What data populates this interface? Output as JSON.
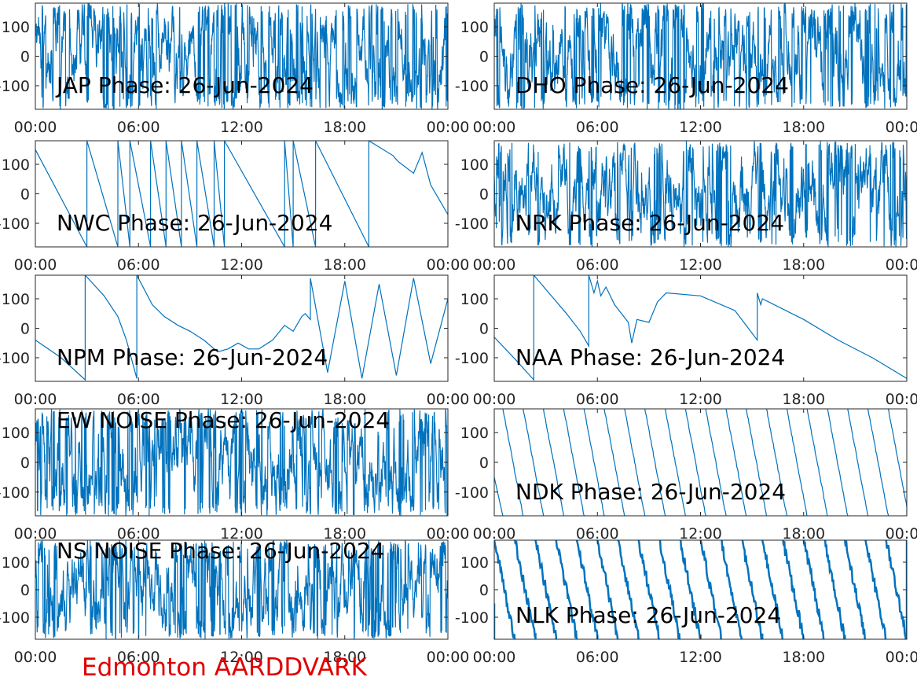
{
  "station_label": "Edmonton AARDDVARK",
  "station_color": "#e00000",
  "series_color": "#0072bd",
  "chart_data": [
    {
      "type": "line",
      "title": "JAP Phase: 26-Jun-2024",
      "x_ticks": [
        "00:00",
        "06:00",
        "12:00",
        "18:00",
        "00:00"
      ],
      "y_ticks": [
        "100",
        "0",
        "-100"
      ],
      "ylim": [
        -180,
        180
      ],
      "xlim": [
        "00:00",
        "24:00"
      ],
      "style": "noise",
      "x": [
        0,
        24
      ],
      "y": [
        0,
        0
      ]
    },
    {
      "type": "line",
      "title": "DHO Phase: 26-Jun-2024",
      "x_ticks": [
        "00:00",
        "06:00",
        "12:00",
        "18:00",
        "00:00"
      ],
      "y_ticks": [
        "100",
        "0",
        "-100"
      ],
      "ylim": [
        -180,
        180
      ],
      "xlim": [
        "00:00",
        "24:00"
      ],
      "style": "noise",
      "x": [
        0,
        24
      ],
      "y": [
        0,
        0
      ]
    },
    {
      "type": "line",
      "title": "NWC Phase: 26-Jun-2024",
      "x_ticks": [
        "00:00",
        "06:00",
        "12:00",
        "18:00",
        "00:00"
      ],
      "y_ticks": [
        "100",
        "0",
        "-100"
      ],
      "ylim": [
        -180,
        180
      ],
      "xlim": [
        "00:00",
        "24:00"
      ],
      "style": "trace",
      "x": [
        0,
        3.0,
        3.0,
        4.8,
        4.8,
        5.5,
        5.5,
        6.7,
        6.7,
        7.6,
        7.6,
        8.5,
        8.5,
        9.4,
        9.4,
        10.4,
        10.4,
        11.0,
        11.0,
        14.5,
        14.5,
        15.0,
        15.0,
        16.3,
        16.3,
        19.4,
        19.4,
        20.8,
        21.1,
        22.0,
        22.5,
        23.0,
        24.0
      ],
      "y": [
        150,
        -180,
        180,
        -180,
        180,
        -180,
        180,
        -180,
        180,
        -180,
        180,
        -180,
        180,
        -180,
        180,
        -180,
        180,
        -180,
        180,
        -180,
        180,
        -180,
        180,
        -180,
        180,
        -180,
        180,
        130,
        110,
        70,
        140,
        30,
        -70
      ]
    },
    {
      "type": "line",
      "title": "NRK Phase: 26-Jun-2024",
      "x_ticks": [
        "00:00",
        "06:00",
        "12:00",
        "18:00",
        "00:00"
      ],
      "y_ticks": [
        "100",
        "0",
        "-100"
      ],
      "ylim": [
        -180,
        180
      ],
      "xlim": [
        "00:00",
        "24:00"
      ],
      "style": "noise",
      "x": [
        0,
        24
      ],
      "y": [
        0,
        0
      ]
    },
    {
      "type": "line",
      "title": "NPM Phase: 26-Jun-2024",
      "x_ticks": [
        "00:00",
        "06:00",
        "12:00",
        "18:00",
        "00:00"
      ],
      "y_ticks": [
        "100",
        "0",
        "-100"
      ],
      "ylim": [
        -180,
        180
      ],
      "xlim": [
        "00:00",
        "24:00"
      ],
      "style": "trace",
      "x": [
        0,
        1.5,
        2.9,
        2.9,
        4.0,
        4.8,
        5.3,
        5.9,
        5.9,
        6.8,
        7.5,
        8.3,
        9.0,
        9.8,
        10.6,
        11.2,
        11.8,
        12.4,
        13.0,
        13.8,
        14.5,
        15.0,
        15.5,
        15.7,
        16.0,
        16.0,
        17.0,
        18.0,
        19.0,
        20.0,
        21.0,
        22.0,
        23.0,
        24.0
      ],
      "y": [
        -40,
        -100,
        -175,
        180,
        110,
        40,
        -40,
        -170,
        180,
        80,
        40,
        10,
        -10,
        -40,
        -80,
        -70,
        -50,
        -70,
        -70,
        -40,
        10,
        -10,
        40,
        50,
        30,
        170,
        -150,
        160,
        -170,
        150,
        -160,
        170,
        -120,
        100
      ]
    },
    {
      "type": "line",
      "title": "NAA Phase: 26-Jun-2024",
      "x_ticks": [
        "00:00",
        "06:00",
        "12:00",
        "18:00",
        "00:00"
      ],
      "y_ticks": [
        "100",
        "0",
        "-100"
      ],
      "ylim": [
        -180,
        180
      ],
      "xlim": [
        "00:00",
        "24:00"
      ],
      "style": "trace",
      "x": [
        0,
        1.3,
        2.3,
        2.3,
        4.2,
        5.0,
        5.5,
        5.5,
        5.8,
        6.0,
        6.2,
        6.5,
        7.0,
        7.8,
        8.0,
        8.3,
        9.0,
        9.5,
        10.0,
        12.0,
        14.0,
        15.3,
        15.3,
        15.5,
        15.6,
        18.0,
        20.0,
        22.0,
        24.0
      ],
      "y": [
        -30,
        -110,
        -175,
        180,
        50,
        -10,
        -60,
        180,
        120,
        160,
        110,
        140,
        80,
        20,
        -50,
        30,
        20,
        90,
        120,
        110,
        60,
        -40,
        120,
        80,
        100,
        30,
        -40,
        -100,
        -170
      ]
    },
    {
      "type": "line",
      "title": "EW NOISE Phase: 26-Jun-2024",
      "x_ticks": [
        "00:00",
        "06:00",
        "12:00",
        "18:00",
        "00:00"
      ],
      "y_ticks": [
        "100",
        "0",
        "-100"
      ],
      "ylim": [
        -180,
        180
      ],
      "xlim": [
        "00:00",
        "24:00"
      ],
      "style": "noise",
      "x": [
        0,
        24
      ],
      "y": [
        0,
        0
      ]
    },
    {
      "type": "line",
      "title": "NDK Phase: 26-Jun-2024",
      "x_ticks": [
        "00:00",
        "06:00",
        "12:00",
        "18:00",
        "00:00"
      ],
      "y_ticks": [
        "100",
        "0",
        "-100"
      ],
      "ylim": [
        -180,
        180
      ],
      "xlim": [
        "00:00",
        "24:00"
      ],
      "style": "sawtooth",
      "x": [
        0.5,
        24
      ],
      "y": [
        180,
        -180
      ]
    },
    {
      "type": "line",
      "title": "NS NOISE Phase: 26-Jun-2024",
      "x_ticks": [
        "00:00",
        "06:00",
        "12:00",
        "18:00",
        "00:00"
      ],
      "y_ticks": [
        "100",
        "0",
        "-100"
      ],
      "ylim": [
        -180,
        180
      ],
      "xlim": [
        "00:00",
        "24:00"
      ],
      "style": "noise",
      "x": [
        0,
        24
      ],
      "y": [
        0,
        0
      ]
    },
    {
      "type": "line",
      "title": "NLK Phase: 26-Jun-2024",
      "x_ticks": [
        "00:00",
        "06:00",
        "12:00",
        "18:00",
        "00:00"
      ],
      "y_ticks": [
        "100",
        "0",
        "-100"
      ],
      "ylim": [
        -180,
        180
      ],
      "xlim": [
        "00:00",
        "24:00"
      ],
      "style": "sawtooth-thick",
      "x": [
        0,
        24
      ],
      "y": [
        180,
        -180
      ]
    }
  ]
}
